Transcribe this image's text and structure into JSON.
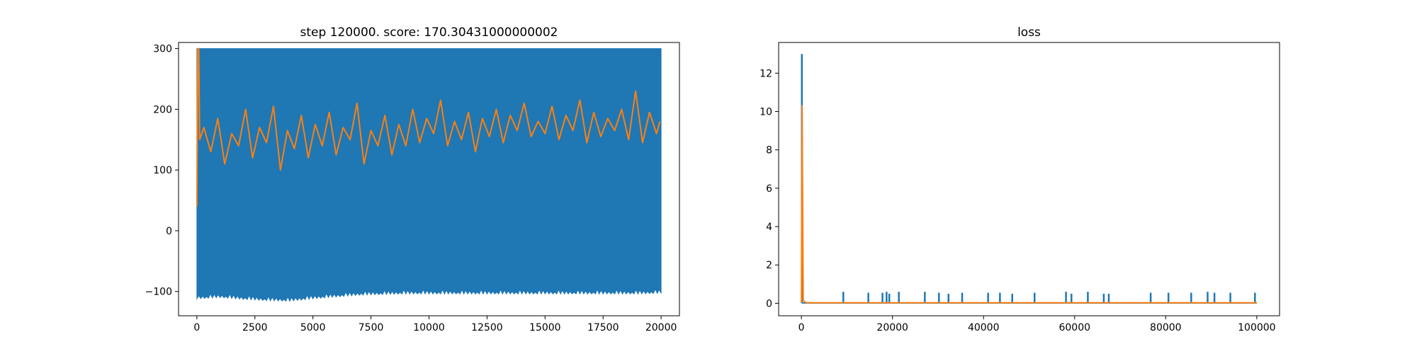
{
  "chart_data": [
    {
      "type": "line",
      "title": "step 120000. score: 170.30431000000002",
      "xlabel": "",
      "ylabel": "",
      "xlim": [
        -790,
        20790
      ],
      "ylim": [
        -140,
        310
      ],
      "x_ticks": [
        0,
        2500,
        5000,
        7500,
        10000,
        12500,
        15000,
        17500,
        20000
      ],
      "x_tick_labels": [
        "0",
        "2500",
        "5000",
        "7500",
        "10000",
        "12500",
        "15000",
        "17500",
        "20000"
      ],
      "y_ticks": [
        -100,
        0,
        100,
        200,
        300
      ],
      "y_tick_labels": [
        "−100",
        "0",
        "100",
        "200",
        "300"
      ],
      "grid": false,
      "legend": "none",
      "series": [
        {
          "color": "#1f77b4",
          "style": "dense oscillation band",
          "x_range": [
            0,
            20000
          ],
          "upper": 300,
          "lower_envelope": {
            "x": [
              0,
              1000,
              2000,
              3000,
              4000,
              5000,
              6000,
              7000,
              8000,
              9000,
              10000,
              11000,
              12000,
              13000,
              14000,
              15000,
              16000,
              17000,
              18000,
              19000,
              20000
            ],
            "y": [
              -112,
              -110,
              -113,
              -115,
              -116,
              -112,
              -109,
              -106,
              -105,
              -104,
              -104,
              -104,
              -104,
              -104,
              -104,
              -104,
              -104,
              -104,
              -104,
              -104,
              -103
            ]
          }
        },
        {
          "color": "#ff7f0e",
          "style": "line",
          "x": [
            0,
            40,
            80,
            120,
            300,
            600,
            900,
            1200,
            1500,
            1800,
            2100,
            2400,
            2700,
            3000,
            3300,
            3600,
            3900,
            4200,
            4500,
            4800,
            5100,
            5400,
            5700,
            6000,
            6300,
            6600,
            6900,
            7200,
            7500,
            7800,
            8100,
            8400,
            8700,
            9000,
            9300,
            9600,
            9900,
            10200,
            10500,
            10800,
            11100,
            11400,
            11700,
            12000,
            12300,
            12600,
            12900,
            13200,
            13500,
            13800,
            14100,
            14400,
            14700,
            15000,
            15300,
            15600,
            15900,
            16200,
            16500,
            16800,
            17100,
            17400,
            17700,
            18000,
            18300,
            18600,
            18900,
            19200,
            19500,
            19800,
            19950
          ],
          "y": [
            40,
            300,
            300,
            150,
            170,
            130,
            185,
            110,
            160,
            140,
            200,
            120,
            170,
            145,
            205,
            100,
            165,
            135,
            190,
            120,
            175,
            140,
            195,
            125,
            170,
            150,
            210,
            110,
            165,
            140,
            190,
            125,
            175,
            140,
            200,
            145,
            185,
            160,
            215,
            140,
            180,
            150,
            195,
            130,
            185,
            155,
            200,
            145,
            190,
            165,
            210,
            155,
            180,
            160,
            205,
            150,
            190,
            165,
            215,
            145,
            195,
            155,
            185,
            165,
            200,
            150,
            230,
            145,
            195,
            160,
            180
          ]
        }
      ]
    },
    {
      "type": "line",
      "title": "loss",
      "xlabel": "",
      "ylabel": "",
      "xlim": [
        -5000,
        105000
      ],
      "ylim": [
        -0.65,
        13.6
      ],
      "x_ticks": [
        0,
        20000,
        40000,
        60000,
        80000,
        100000
      ],
      "x_tick_labels": [
        "0",
        "20000",
        "40000",
        "60000",
        "80000",
        "100000"
      ],
      "y_ticks": [
        0,
        2,
        4,
        6,
        8,
        10,
        12
      ],
      "y_tick_labels": [
        "0",
        "2",
        "4",
        "6",
        "8",
        "10",
        "12"
      ],
      "grid": false,
      "legend": "none",
      "series": [
        {
          "color": "#1f77b4",
          "style": "baseline with spikes",
          "baseline": 0.02,
          "spikes": {
            "x": [
              100,
              9200,
              14700,
              17800,
              18700,
              19300,
              21400,
              27100,
              30200,
              32300,
              35300,
              41000,
              43600,
              46300,
              51200,
              58100,
              59300,
              62900,
              66400,
              67500,
              76700,
              80600,
              85600,
              89200,
              90700,
              94200,
              99600
            ],
            "y": [
              13.0,
              0.6,
              0.55,
              0.55,
              0.6,
              0.5,
              0.6,
              0.6,
              0.55,
              0.5,
              0.55,
              0.55,
              0.55,
              0.5,
              0.55,
              0.6,
              0.5,
              0.6,
              0.5,
              0.5,
              0.55,
              0.55,
              0.55,
              0.6,
              0.55,
              0.55,
              0.55
            ]
          }
        },
        {
          "color": "#ff7f0e",
          "style": "line",
          "x": [
            0,
            150,
            400,
            1000,
            100000
          ],
          "y": [
            0.05,
            10.3,
            0.15,
            0.03,
            0.03
          ]
        }
      ]
    }
  ]
}
